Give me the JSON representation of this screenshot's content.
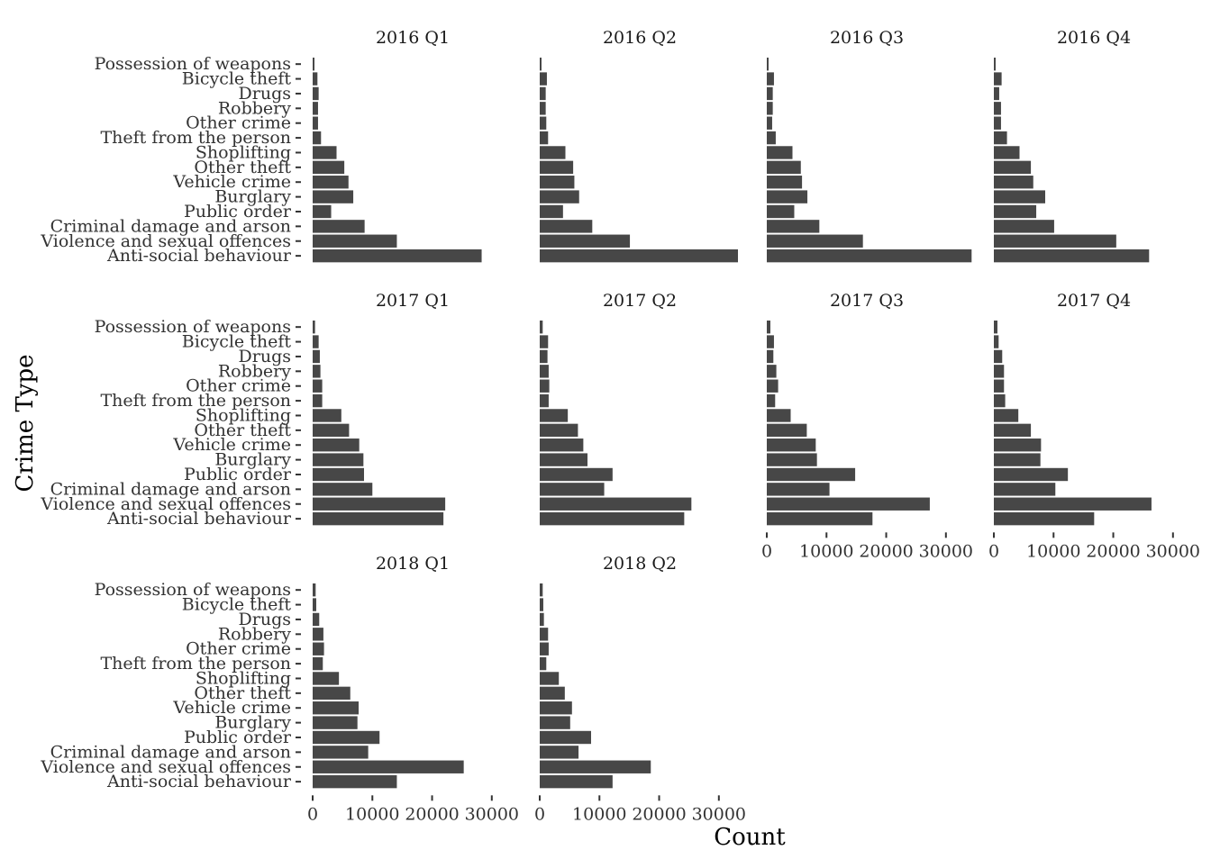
{
  "chart_data": {
    "type": "bar",
    "orientation": "horizontal",
    "xlabel": "Count",
    "ylabel": "Crime Type",
    "xlim": [
      0,
      33500
    ],
    "x_ticks": [
      0,
      10000,
      20000,
      30000
    ],
    "x_tick_labels": [
      "0",
      "10000",
      "20000",
      "30000"
    ],
    "grid": false,
    "bar_color": "#474747",
    "categories": [
      "Possession of weapons",
      "Bicycle theft",
      "Drugs",
      "Robbery",
      "Other crime",
      "Theft from the person",
      "Shoplifting",
      "Other theft",
      "Vehicle crime",
      "Burglary",
      "Public order",
      "Criminal damage and arson",
      "Violence and sexual offences",
      "Anti-social behaviour"
    ],
    "panels": [
      {
        "title": "2016 Q1",
        "values": [
          300,
          800,
          1000,
          900,
          900,
          1400,
          4000,
          5300,
          6000,
          6800,
          3100,
          8700,
          14100,
          28300
        ]
      },
      {
        "title": "2016 Q2",
        "values": [
          300,
          1200,
          1000,
          1000,
          1100,
          1400,
          4300,
          5600,
          5800,
          6600,
          3900,
          8800,
          15100,
          33200
        ]
      },
      {
        "title": "2016 Q3",
        "values": [
          300,
          1200,
          1000,
          1000,
          900,
          1500,
          4300,
          5700,
          5900,
          6800,
          4600,
          8800,
          16100,
          34300
        ]
      },
      {
        "title": "2016 Q4",
        "values": [
          300,
          1300,
          900,
          1200,
          1200,
          2200,
          4300,
          6200,
          6600,
          8600,
          7100,
          10100,
          20500,
          26000
        ]
      },
      {
        "title": "2017 Q1",
        "values": [
          400,
          1000,
          1200,
          1300,
          1600,
          1600,
          4800,
          6100,
          7800,
          8500,
          8600,
          10000,
          22200,
          21900
        ]
      },
      {
        "title": "2017 Q2",
        "values": [
          500,
          1400,
          1300,
          1500,
          1600,
          1500,
          4700,
          6400,
          7300,
          8000,
          12200,
          10800,
          25400,
          24200
        ]
      },
      {
        "title": "2017 Q3",
        "values": [
          600,
          1200,
          1100,
          1600,
          1900,
          1400,
          4000,
          6700,
          8200,
          8400,
          14800,
          10500,
          27300,
          17700
        ]
      },
      {
        "title": "2017 Q4",
        "values": [
          600,
          800,
          1400,
          1700,
          1700,
          1900,
          4100,
          6200,
          7900,
          7800,
          12400,
          10300,
          26400,
          16800
        ]
      },
      {
        "title": "2018 Q1",
        "values": [
          500,
          600,
          1100,
          1800,
          1900,
          1700,
          4400,
          6300,
          7700,
          7500,
          11200,
          9300,
          25300,
          14100
        ]
      },
      {
        "title": "2018 Q2",
        "values": [
          500,
          600,
          700,
          1400,
          1500,
          1100,
          3200,
          4200,
          5400,
          5100,
          8600,
          6500,
          18600,
          12200
        ]
      }
    ]
  }
}
